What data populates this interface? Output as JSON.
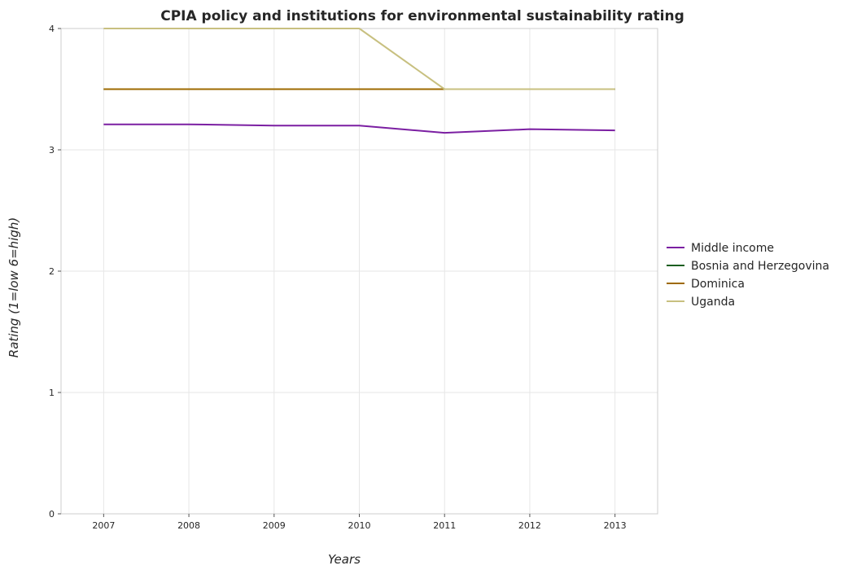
{
  "chart_data": {
    "type": "line",
    "title": "CPIA policy and institutions for environmental sustainability rating",
    "xlabel": "Years",
    "ylabel": "Rating (1=low 6=high)",
    "categories": [
      "2007",
      "2008",
      "2009",
      "2010",
      "2011",
      "2012",
      "2013"
    ],
    "ylim": [
      0,
      4
    ],
    "yticks": [
      "0",
      "1",
      "2",
      "3",
      "4"
    ],
    "grid": true,
    "legend_position": "right",
    "series": [
      {
        "name": "Middle income",
        "color": "#7b1fa2",
        "values": [
          3.21,
          3.21,
          3.2,
          3.2,
          3.14,
          3.17,
          3.16
        ]
      },
      {
        "name": "Bosnia and Herzegovina",
        "color": "#1b5e20",
        "values": [
          3.5,
          3.5,
          3.5,
          3.5,
          3.5,
          3.5,
          3.5
        ]
      },
      {
        "name": "Dominica",
        "color": "#9e6a00",
        "values": [
          3.5,
          3.5,
          3.5,
          3.5,
          3.5,
          3.5,
          3.5
        ]
      },
      {
        "name": "Uganda",
        "color": "#c8c080",
        "values": [
          4.0,
          4.0,
          4.0,
          4.0,
          3.5,
          3.5,
          3.5
        ]
      }
    ]
  }
}
